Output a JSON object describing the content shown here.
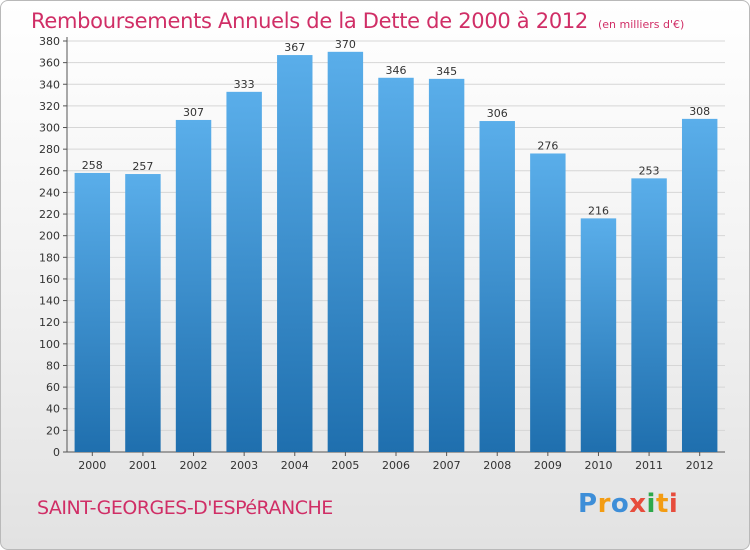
{
  "header": {
    "title": "Remboursements Annuels de la Dette de 2000 à 2012",
    "unit": "(en milliers d'€)"
  },
  "footer": {
    "commune": "SAINT-GEORGES-D'ESPéRANCHE",
    "logo": "Proxiti",
    "logo_colors": [
      "#3d8ed8",
      "#f39c12",
      "#3d8ed8",
      "#e74c3c",
      "#2ea84a",
      "#f39c12",
      "#e74c3c"
    ]
  },
  "colors": {
    "accent": "#d02e66",
    "bar_top": "#5aaeea",
    "bar_bottom": "#1f6fae",
    "grid": "#d6d6d6"
  },
  "chart_data": {
    "type": "bar",
    "categories": [
      "2000",
      "2001",
      "2002",
      "2003",
      "2004",
      "2005",
      "2006",
      "2007",
      "2008",
      "2009",
      "2010",
      "2011",
      "2012"
    ],
    "values": [
      258,
      257,
      307,
      333,
      367,
      370,
      346,
      345,
      306,
      276,
      216,
      253,
      308
    ],
    "title": "Remboursements Annuels de la Dette de 2000 à 2012",
    "xlabel": "",
    "ylabel": "",
    "ylim": [
      0,
      380
    ],
    "ytick_step": 20,
    "grid": true,
    "data_labels": true
  }
}
